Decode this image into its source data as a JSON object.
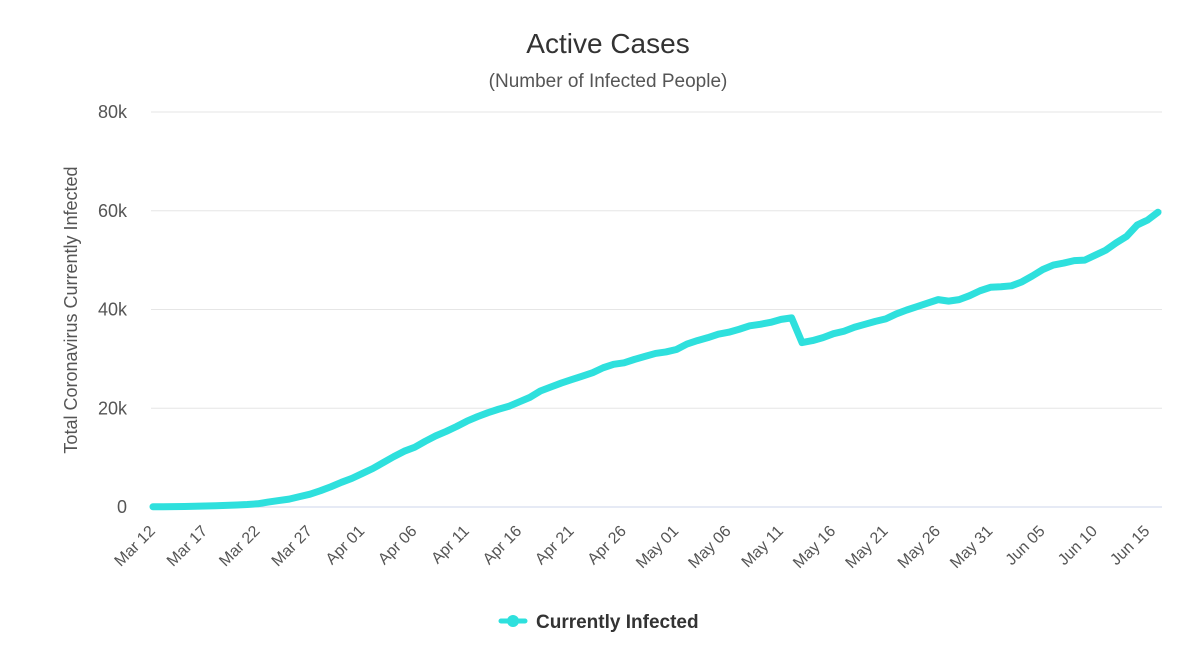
{
  "chart_data": {
    "type": "line",
    "title": "Active Cases",
    "subtitle": "(Number of Infected People)",
    "xlabel": "",
    "ylabel": "Total Coronavirus Currently Infected",
    "ylim": [
      0,
      80000
    ],
    "yticks": [
      0,
      20000,
      40000,
      60000,
      80000
    ],
    "ytick_labels": [
      "0",
      "20k",
      "40k",
      "60k",
      "80k"
    ],
    "xtick_labels": [
      "Mar 12",
      "Mar 17",
      "Mar 22",
      "Mar 27",
      "Apr 01",
      "Apr 06",
      "Apr 11",
      "Apr 16",
      "Apr 21",
      "Apr 26",
      "May 01",
      "May 06",
      "May 11",
      "May 16",
      "May 21",
      "May 26",
      "May 31",
      "Jun 05",
      "Jun 10",
      "Jun 15"
    ],
    "x_start": "Mar 12",
    "x_end": "Jun 15",
    "legend": {
      "position": "bottom-center",
      "entries": [
        "Currently Infected"
      ]
    },
    "series": [
      {
        "name": "Currently Infected",
        "color": "#2ee0dd",
        "values": [
          50,
          60,
          80,
          100,
          150,
          200,
          260,
          320,
          400,
          500,
          650,
          1000,
          1300,
          1600,
          2100,
          2600,
          3300,
          4100,
          5000,
          5800,
          6800,
          7800,
          9000,
          10200,
          11300,
          12100,
          13300,
          14400,
          15300,
          16300,
          17400,
          18300,
          19100,
          19800,
          20400,
          21300,
          22200,
          23500,
          24300,
          25100,
          25800,
          26500,
          27200,
          28200,
          28900,
          29200,
          29900,
          30500,
          31100,
          31400,
          31900,
          33000,
          33700,
          34300,
          35000,
          35400,
          36000,
          36700,
          37000,
          37400,
          38000,
          38300,
          33300,
          33700,
          34300,
          35100,
          35600,
          36400,
          37000,
          37600,
          38100,
          39100,
          39900,
          40600,
          41300,
          42000,
          41700,
          42000,
          42800,
          43800,
          44500,
          44600,
          44800,
          45600,
          46800,
          48100,
          49000,
          49400,
          49900,
          50000,
          51000,
          52000,
          53500,
          54800,
          57100,
          58100,
          59700
        ]
      }
    ]
  }
}
